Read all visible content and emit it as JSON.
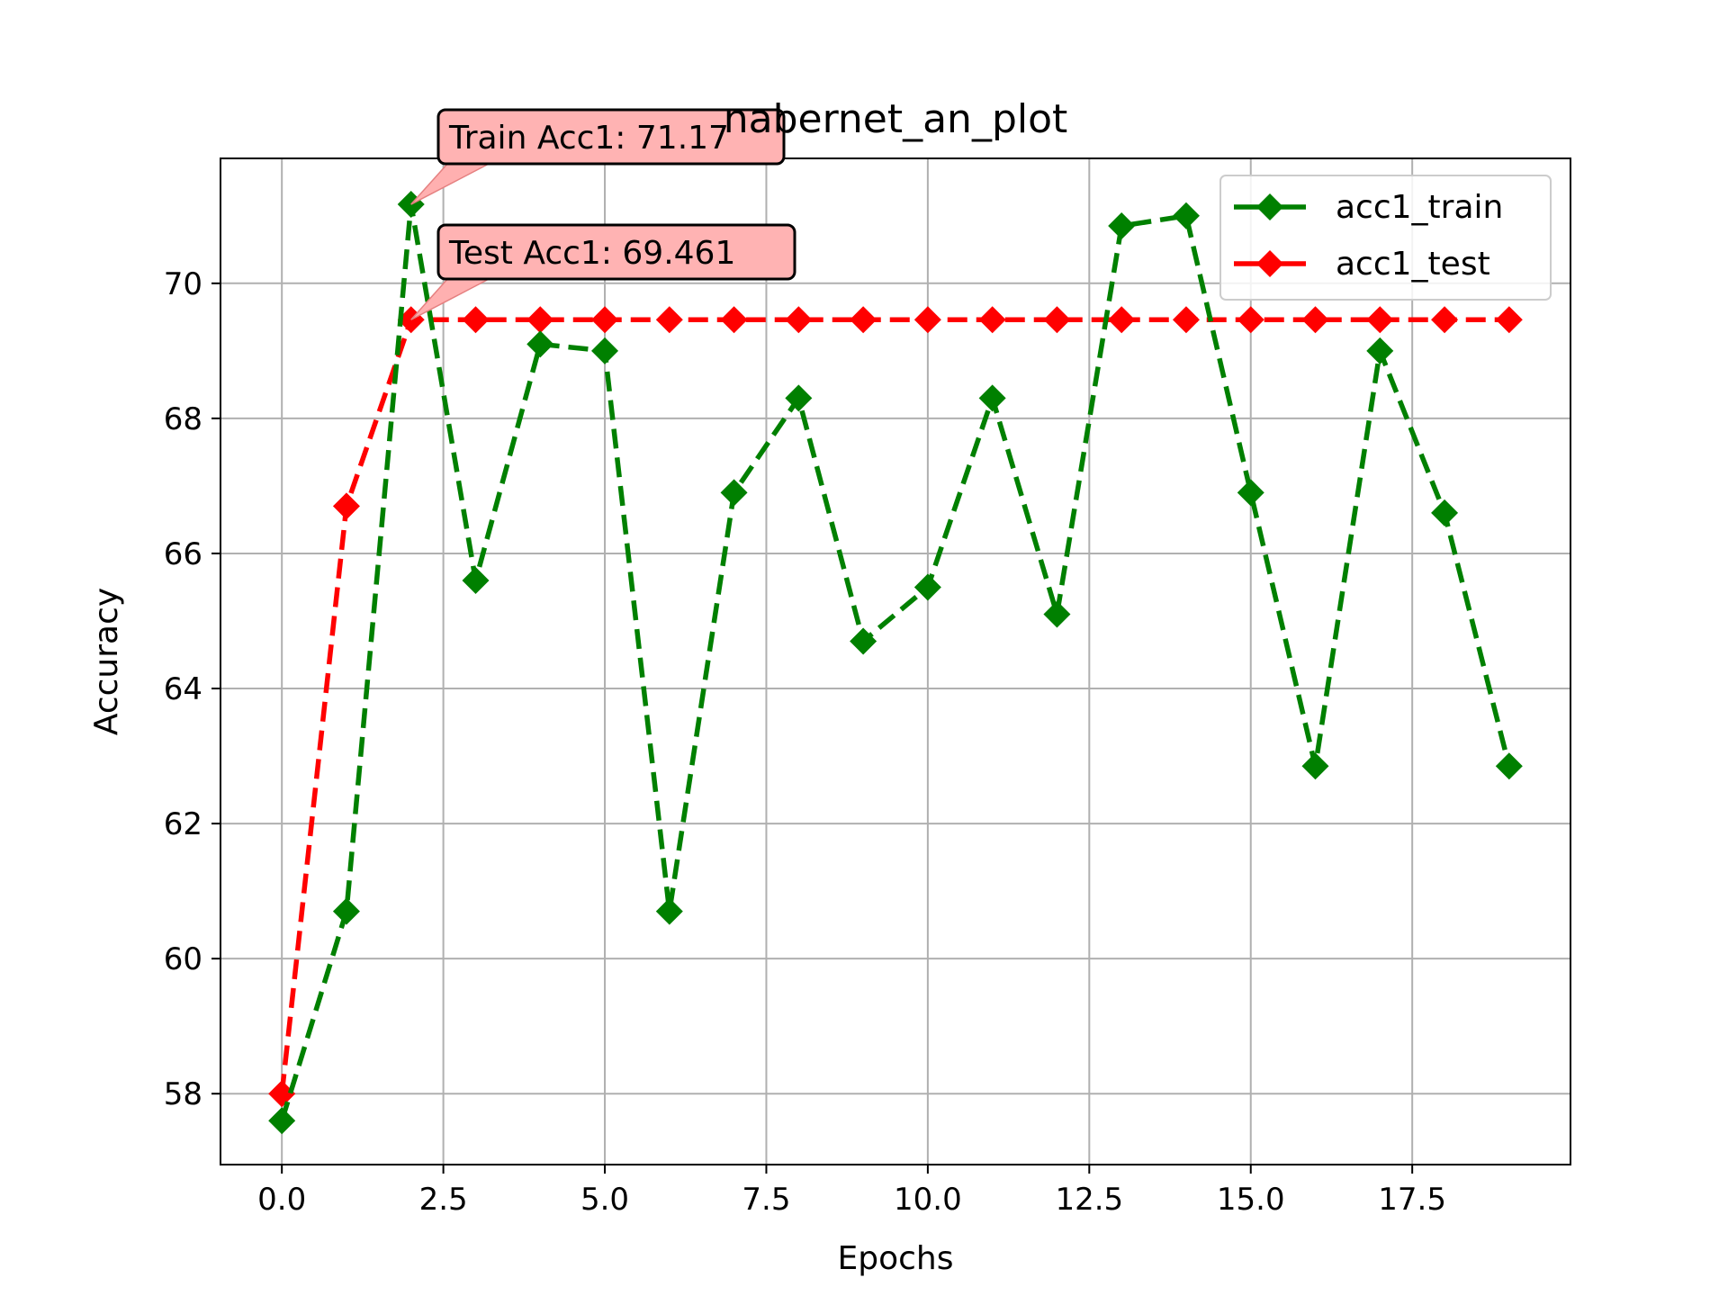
{
  "chart_data": {
    "type": "line",
    "title": "nabernet_an_plot",
    "xlabel": "Epochs",
    "ylabel": "Accuracy",
    "xlim": [
      -0.95,
      19.95
    ],
    "ylim": [
      56.95,
      71.85
    ],
    "xticks": [
      "0.0",
      "2.5",
      "5.0",
      "7.5",
      "10.0",
      "12.5",
      "15.0",
      "17.5"
    ],
    "yticks": [
      "58",
      "60",
      "62",
      "64",
      "66",
      "68",
      "70"
    ],
    "grid": true,
    "legend_position": "upper right",
    "x": [
      0,
      1,
      2,
      3,
      4,
      5,
      6,
      7,
      8,
      9,
      10,
      11,
      12,
      13,
      14,
      15,
      16,
      17,
      18,
      19
    ],
    "series": [
      {
        "name": "acc1_train",
        "color": "#008000",
        "marker": "diamond",
        "linestyle": "dashed",
        "values": [
          57.6,
          60.7,
          71.17,
          65.6,
          69.1,
          69.0,
          60.7,
          66.9,
          68.3,
          64.7,
          65.5,
          68.3,
          65.1,
          70.85,
          71.0,
          66.9,
          62.85,
          69.0,
          66.6,
          62.85
        ]
      },
      {
        "name": "acc1_test",
        "color": "#ff0000",
        "marker": "diamond",
        "linestyle": "dashed",
        "values": [
          58.0,
          66.7,
          69.461,
          69.461,
          69.461,
          69.461,
          69.461,
          69.461,
          69.461,
          69.461,
          69.461,
          69.461,
          69.461,
          69.461,
          69.461,
          69.461,
          69.461,
          69.461,
          69.461,
          69.461
        ]
      }
    ],
    "annotations": [
      {
        "text": "Train Acc1: 71.17",
        "x": 2,
        "y": 71.17
      },
      {
        "text": "Test Acc1: 69.461",
        "x": 2,
        "y": 69.461
      }
    ]
  }
}
